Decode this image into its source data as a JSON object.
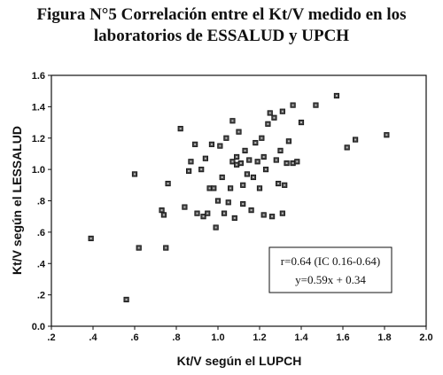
{
  "title_line1": "Figura N°5 Correlación entre el Kt/V medido en los",
  "title_line2": "laboratorios de ESSALUD y UPCH",
  "chart_data": {
    "type": "scatter",
    "xlabel": "Kt/V según el LUPCH",
    "ylabel": "Kt/V según el LESSALUD",
    "xlim": [
      0.2,
      2.0
    ],
    "ylim": [
      0.0,
      1.6
    ],
    "x_ticks": [
      ".2",
      ".4",
      ".6",
      ".8",
      "1.0",
      "1.2",
      "1.4",
      "1.6",
      "1.8",
      "2.0"
    ],
    "y_ticks": [
      "0.0",
      ".2",
      ".4",
      ".6",
      ".8",
      "1.0",
      "1.2",
      "1.4",
      "1.6"
    ],
    "grid": false,
    "annotations": [
      "r=0.64 (IC  0.16-0.64)",
      "y=0.59x + 0.34"
    ],
    "points": [
      [
        0.39,
        0.56
      ],
      [
        0.56,
        0.17
      ],
      [
        0.6,
        0.97
      ],
      [
        0.62,
        0.5
      ],
      [
        0.73,
        0.74
      ],
      [
        0.74,
        0.71
      ],
      [
        0.75,
        0.5
      ],
      [
        0.76,
        0.91
      ],
      [
        0.82,
        1.26
      ],
      [
        0.84,
        0.76
      ],
      [
        0.86,
        0.99
      ],
      [
        0.87,
        1.05
      ],
      [
        0.89,
        1.16
      ],
      [
        0.9,
        0.72
      ],
      [
        0.92,
        1.0
      ],
      [
        0.93,
        0.7
      ],
      [
        0.94,
        1.07
      ],
      [
        0.95,
        0.72
      ],
      [
        0.96,
        0.88
      ],
      [
        0.97,
        1.16
      ],
      [
        0.98,
        0.88
      ],
      [
        0.99,
        0.63
      ],
      [
        1.0,
        0.8
      ],
      [
        1.01,
        1.15
      ],
      [
        1.02,
        0.95
      ],
      [
        1.03,
        0.72
      ],
      [
        1.04,
        1.2
      ],
      [
        1.05,
        0.79
      ],
      [
        1.06,
        0.88
      ],
      [
        1.07,
        1.31
      ],
      [
        1.07,
        1.05
      ],
      [
        1.08,
        0.69
      ],
      [
        1.09,
        1.03
      ],
      [
        1.09,
        1.08
      ],
      [
        1.1,
        1.24
      ],
      [
        1.11,
        1.04
      ],
      [
        1.12,
        0.78
      ],
      [
        1.12,
        0.9
      ],
      [
        1.13,
        1.12
      ],
      [
        1.14,
        0.97
      ],
      [
        1.15,
        1.06
      ],
      [
        1.16,
        0.74
      ],
      [
        1.17,
        0.95
      ],
      [
        1.18,
        1.17
      ],
      [
        1.19,
        1.05
      ],
      [
        1.2,
        0.88
      ],
      [
        1.21,
        1.2
      ],
      [
        1.22,
        0.71
      ],
      [
        1.22,
        1.08
      ],
      [
        1.23,
        1.0
      ],
      [
        1.24,
        1.29
      ],
      [
        1.25,
        1.36
      ],
      [
        1.26,
        0.7
      ],
      [
        1.27,
        1.33
      ],
      [
        1.28,
        1.06
      ],
      [
        1.29,
        0.91
      ],
      [
        1.3,
        1.12
      ],
      [
        1.31,
        0.72
      ],
      [
        1.31,
        1.37
      ],
      [
        1.32,
        0.9
      ],
      [
        1.33,
        1.04
      ],
      [
        1.34,
        1.18
      ],
      [
        1.36,
        1.41
      ],
      [
        1.36,
        1.04
      ],
      [
        1.38,
        1.05
      ],
      [
        1.4,
        1.3
      ],
      [
        1.47,
        1.41
      ],
      [
        1.57,
        1.47
      ],
      [
        1.62,
        1.14
      ],
      [
        1.66,
        1.19
      ],
      [
        1.81,
        1.22
      ]
    ]
  }
}
